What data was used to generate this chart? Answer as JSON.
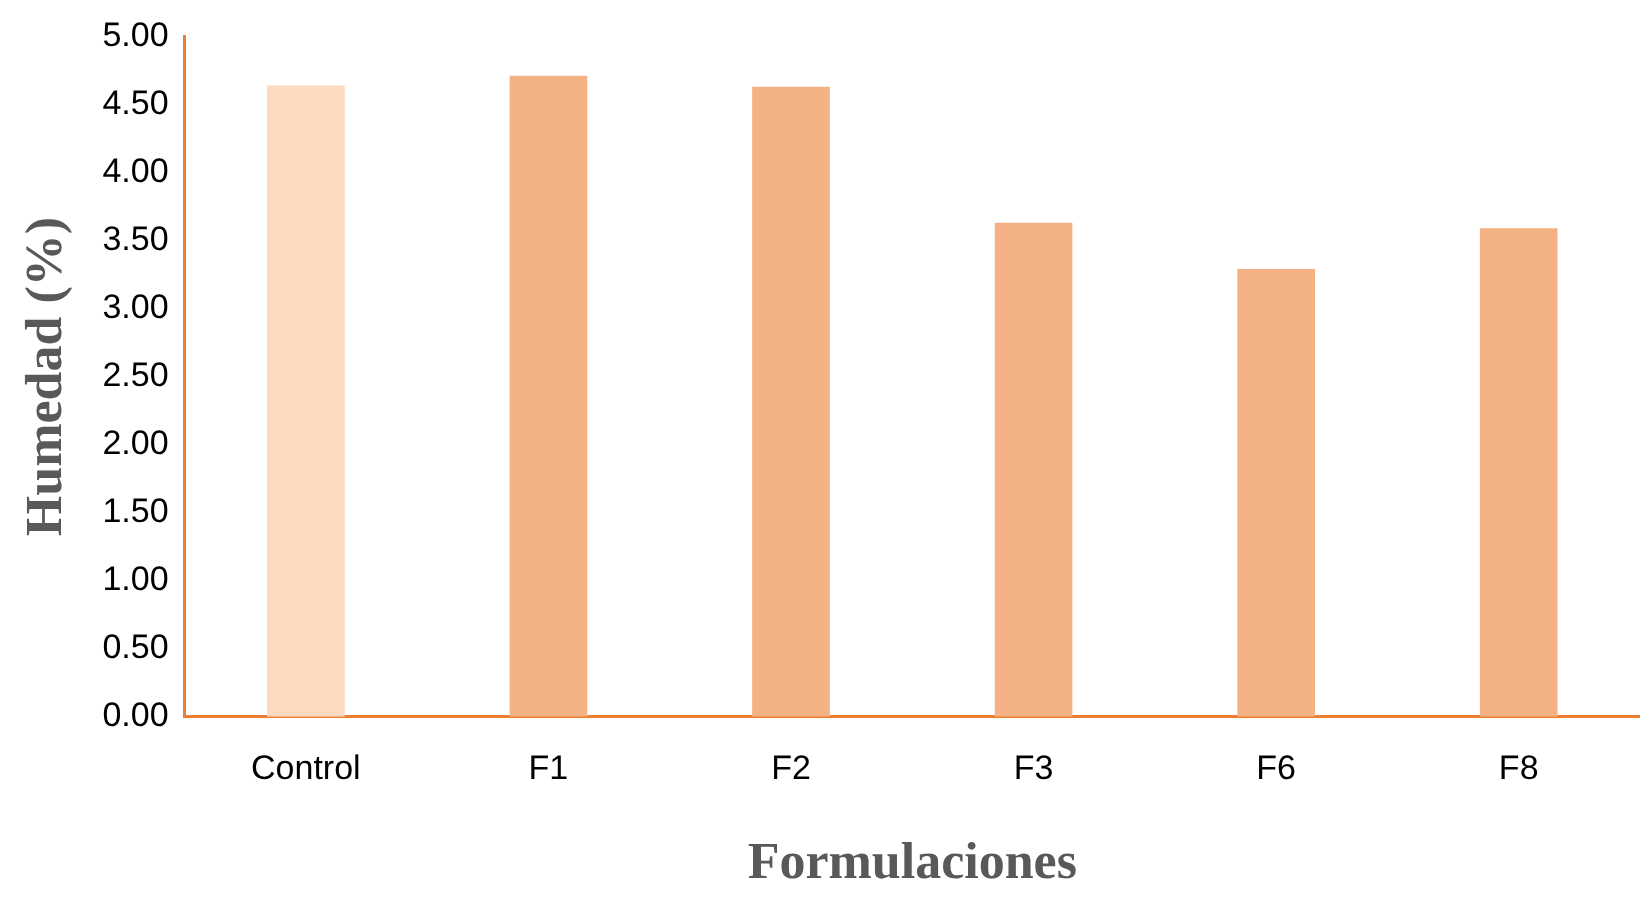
{
  "chart_data": {
    "type": "bar",
    "xlabel": "Formulaciones",
    "ylabel": "Humedad (%)",
    "categories": [
      "Control",
      "F1",
      "F2",
      "F3",
      "F6",
      "F8"
    ],
    "values": [
      4.64,
      4.71,
      4.63,
      3.63,
      3.29,
      3.59
    ],
    "colors": [
      "#fdd9bf",
      "#f4b183",
      "#f4b183",
      "#f4b183",
      "#f4b183",
      "#f4b183"
    ],
    "ylim": [
      0,
      5
    ],
    "yticks": [
      {
        "value": 0,
        "label": "0.00"
      },
      {
        "value": 0.5,
        "label": "0.50"
      },
      {
        "value": 1,
        "label": "1.00"
      },
      {
        "value": 1.5,
        "label": "1.50"
      },
      {
        "value": 2,
        "label": "2.00"
      },
      {
        "value": 2.5,
        "label": "2.50"
      },
      {
        "value": 3,
        "label": "3.00"
      },
      {
        "value": 3.5,
        "label": "3.50"
      },
      {
        "value": 4,
        "label": "4.00"
      },
      {
        "value": 4.5,
        "label": "4.50"
      },
      {
        "value": 5,
        "label": "5.00"
      }
    ],
    "grid": false,
    "legend": false
  }
}
